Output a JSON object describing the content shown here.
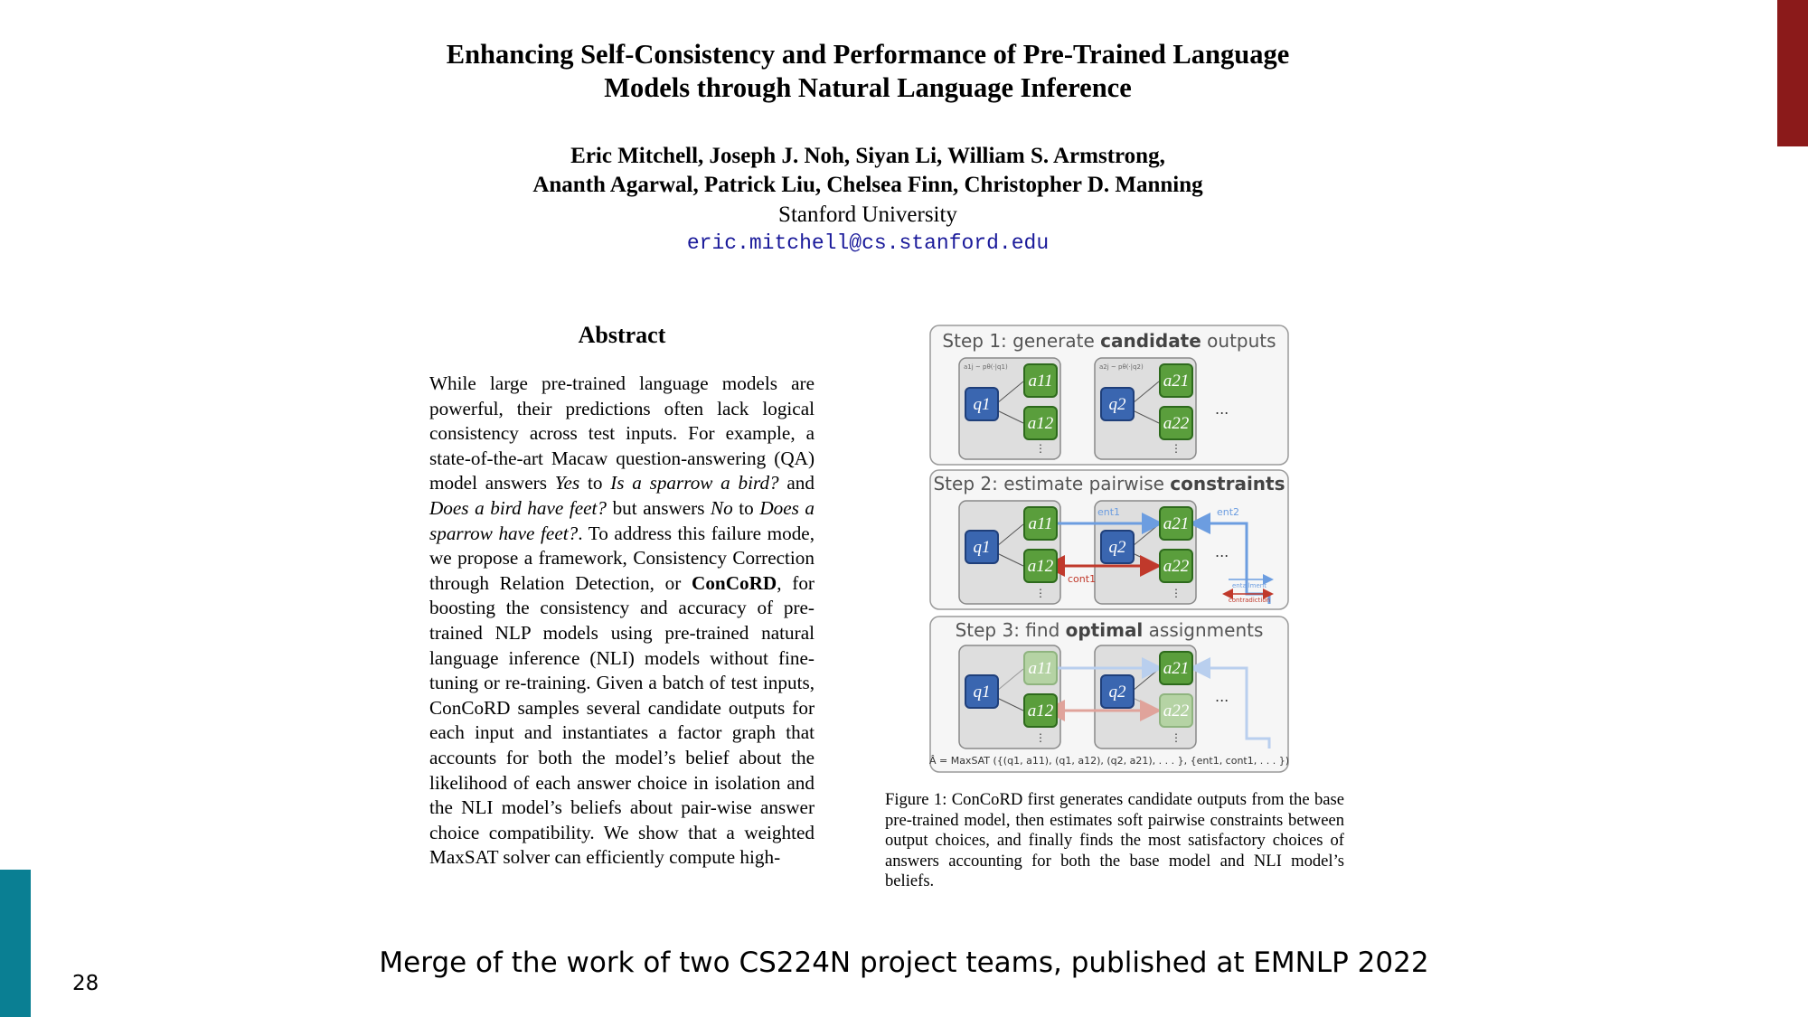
{
  "paper": {
    "title_line1": "Enhancing Self-Consistency and Performance of Pre-Trained Language",
    "title_line2": "Models through Natural Language Inference",
    "authors_line1": "Eric Mitchell, Joseph J. Noh, Siyan Li, William S. Armstrong,",
    "authors_line2": "Ananth Agarwal, Patrick Liu, Chelsea Finn, Christopher D. Manning",
    "affiliation": "Stanford University",
    "email": "eric.mitchell@cs.stanford.edu"
  },
  "abstract": {
    "heading": "Abstract",
    "t1": "While large pre-trained language models are powerful, their predictions often lack logical consistency across test inputs. For example, a state-of-the-art Macaw question-answering (QA) model answers ",
    "i1": "Yes",
    "t2": " to ",
    "i2": "Is a sparrow a bird?",
    "t3": " and ",
    "i3": "Does a bird have feet?",
    "t4": " but answers ",
    "i4": "No",
    "t5": " to ",
    "i5": "Does a sparrow have feet?",
    "t6": ". To address this failure mode, we propose a framework, Consistency Correction through Relation Detection, or ",
    "b1": "ConCoRD",
    "t7": ", for boosting the consistency and accuracy of pre-trained NLP models using pre-trained natural language inference (NLI) models without fine-tuning or re-training. Given a batch of test inputs, ConCoRD samples several candidate outputs for each input and instantiates a factor graph that accounts for both the model’s belief about the likelihood of each answer choice in isolation and the NLI model’s beliefs about pair-wise answer choice compatibility. We show that a weighted MaxSAT solver can efficiently compute high-"
  },
  "figure": {
    "step1_pre": "Step 1: generate ",
    "step1_bold": "candidate",
    "step1_post": " outputs",
    "step2_pre": "Step 2: estimate pairwise ",
    "step2_bold": "constraints",
    "step3_pre": "Step 3: find ",
    "step3_bold": "optimal",
    "step3_post": " assignments",
    "sample1": "a1j ~ pθ(·|q1)",
    "sample2": "a2j ~ pθ(·|q2)",
    "q1": "q1",
    "q2": "q2",
    "a11": "a11",
    "a12": "a12",
    "a21": "a21",
    "a22": "a22",
    "dots": "...",
    "ent1": "ent1",
    "ent2": "ent2",
    "cont1": "cont1",
    "legend_entailment": "entailment",
    "legend_contradiction": "contradiction",
    "maxsat": "Â = MaxSAT ({(q1, a11), (q1, a12), (q2, a21), . . . }, {ent1, cont1, . . . })",
    "colors": {
      "question": "#3a66b0",
      "answer": "#5a9e3c",
      "entailment": "#6c9de0",
      "contradiction": "#c0392b"
    }
  },
  "caption": "Figure 1: ConCoRD first generates candidate outputs from the base pre-trained model, then estimates soft pairwise constraints between output choices, and finally finds the most satisfactory choices of answers accounting for both the base model and NLI model’s beliefs.",
  "slide": {
    "footer": "Merge of the work of two CS224N project teams, published at EMNLP 2022",
    "page_number": "28",
    "accent_top": "#8b1a1a",
    "accent_bottom": "#0a7f93"
  }
}
